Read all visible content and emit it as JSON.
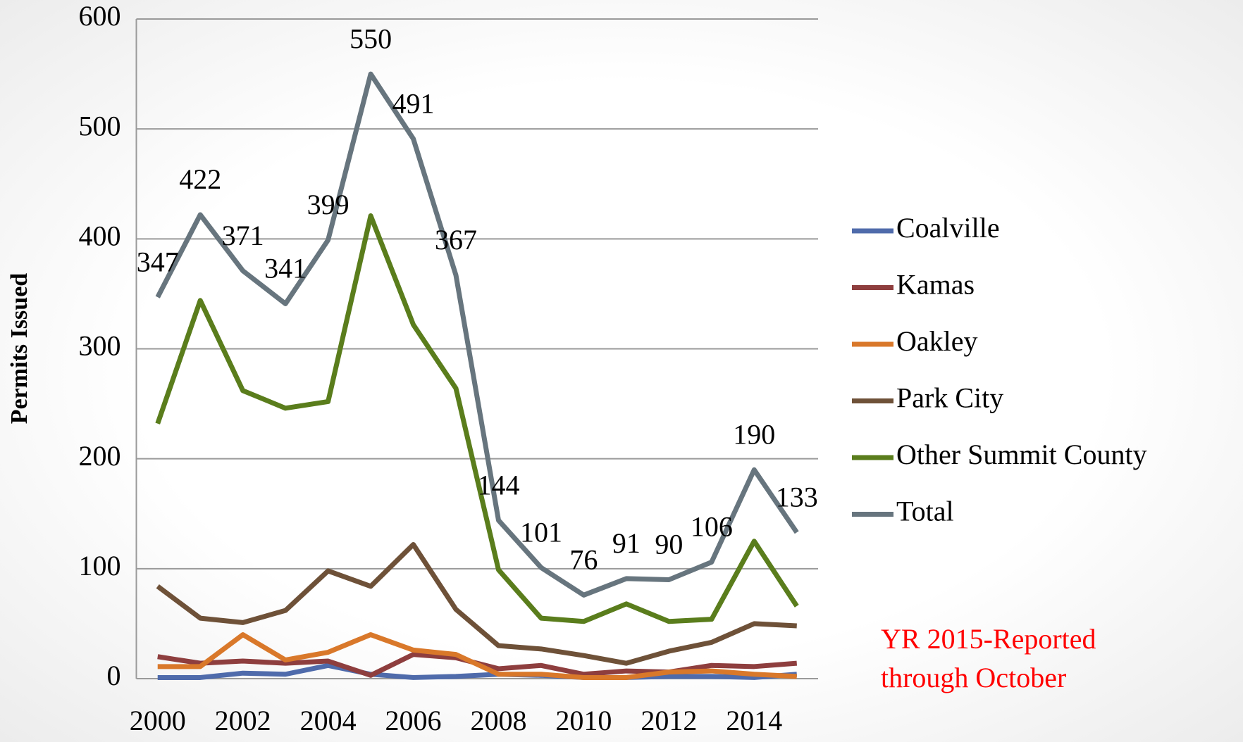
{
  "chart_data": {
    "type": "line",
    "y_label": "Permits Issued",
    "x": [
      2000,
      2001,
      2002,
      2003,
      2004,
      2005,
      2006,
      2007,
      2008,
      2009,
      2010,
      2011,
      2012,
      2013,
      2014,
      2015
    ],
    "xlim": [
      1999.5,
      2015.5
    ],
    "xticks": [
      2000,
      2002,
      2004,
      2006,
      2008,
      2010,
      2012,
      2014
    ],
    "ylim": [
      0,
      600
    ],
    "yticks": [
      0,
      100,
      200,
      300,
      400,
      500,
      600
    ],
    "grid": true,
    "legend": "right",
    "series": [
      {
        "name": "Coalville",
        "color": "#4f6bab",
        "values": [
          1,
          1,
          5,
          4,
          12,
          4,
          1,
          2,
          4,
          3,
          1,
          1,
          2,
          2,
          1,
          4
        ]
      },
      {
        "name": "Kamas",
        "color": "#8e3e3e",
        "values": [
          20,
          14,
          16,
          14,
          16,
          3,
          22,
          19,
          9,
          12,
          4,
          7,
          6,
          12,
          11,
          14
        ]
      },
      {
        "name": "Oakley",
        "color": "#d9782a",
        "values": [
          11,
          11,
          40,
          17,
          24,
          40,
          26,
          22,
          4,
          4,
          1,
          1,
          6,
          7,
          4,
          2
        ]
      },
      {
        "name": "Park City",
        "color": "#6e5138",
        "values": [
          84,
          55,
          51,
          62,
          98,
          84,
          122,
          63,
          30,
          27,
          21,
          14,
          25,
          33,
          50,
          48
        ]
      },
      {
        "name": "Other Summit County",
        "color": "#5a7d1c",
        "values": [
          232,
          344,
          262,
          246,
          252,
          421,
          322,
          264,
          99,
          55,
          52,
          68,
          52,
          54,
          125,
          66
        ]
      },
      {
        "name": "Total",
        "color": "#67757e",
        "show_labels": true,
        "values": [
          347,
          422,
          371,
          341,
          399,
          550,
          491,
          367,
          144,
          101,
          76,
          91,
          90,
          106,
          190,
          133
        ]
      }
    ],
    "annotation": [
      "YR 2015-Reported",
      "through October"
    ]
  }
}
